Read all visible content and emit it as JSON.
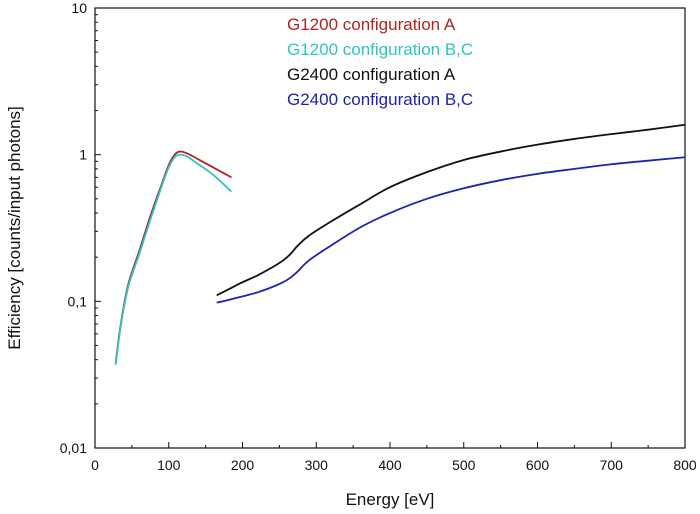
{
  "chart_data": {
    "type": "line",
    "xlabel": "Energy [eV]",
    "ylabel": "Efficiency [counts/input photons]",
    "xlim": [
      0,
      800
    ],
    "ylim": [
      0.01,
      10
    ],
    "yscale": "log",
    "xticks": [
      "0",
      "100",
      "200",
      "300",
      "400",
      "500",
      "600",
      "700",
      "800"
    ],
    "yticks": [
      "0,01",
      "0,1",
      "1",
      "10"
    ],
    "legend_position": "top-center",
    "grid": false,
    "series": [
      {
        "name": "G1200 configuration A",
        "color": "#b22222",
        "x": [
          28,
          35,
          45,
          60,
          75,
          90,
          100,
          108,
          115,
          125,
          140,
          160,
          185
        ],
        "y": [
          0.038,
          0.07,
          0.13,
          0.22,
          0.38,
          0.62,
          0.85,
          1.0,
          1.05,
          1.02,
          0.93,
          0.82,
          0.7
        ]
      },
      {
        "name": "G1200 configuration B,C",
        "color": "#2ec4c4",
        "x": [
          28,
          35,
          45,
          60,
          75,
          90,
          100,
          108,
          115,
          125,
          140,
          160,
          185
        ],
        "y": [
          0.037,
          0.068,
          0.125,
          0.21,
          0.36,
          0.6,
          0.82,
          0.96,
          1.0,
          0.97,
          0.86,
          0.73,
          0.56
        ]
      },
      {
        "name": "G2400 configuration A",
        "color": "#111111",
        "x": [
          165,
          180,
          200,
          220,
          240,
          255,
          265,
          275,
          290,
          320,
          360,
          400,
          450,
          500,
          550,
          600,
          650,
          700,
          750,
          800
        ],
        "y": [
          0.11,
          0.12,
          0.135,
          0.15,
          0.17,
          0.19,
          0.21,
          0.24,
          0.28,
          0.35,
          0.46,
          0.6,
          0.76,
          0.92,
          1.05,
          1.17,
          1.28,
          1.38,
          1.48,
          1.6
        ]
      },
      {
        "name": "G2400 configuration B,C",
        "color": "#1f22b0",
        "x": [
          165,
          180,
          200,
          220,
          240,
          255,
          265,
          275,
          290,
          320,
          360,
          400,
          450,
          500,
          550,
          600,
          650,
          700,
          750,
          800
        ],
        "y": [
          0.098,
          0.102,
          0.108,
          0.115,
          0.125,
          0.135,
          0.145,
          0.16,
          0.19,
          0.24,
          0.32,
          0.4,
          0.5,
          0.59,
          0.67,
          0.74,
          0.8,
          0.86,
          0.91,
          0.96
        ]
      }
    ]
  }
}
